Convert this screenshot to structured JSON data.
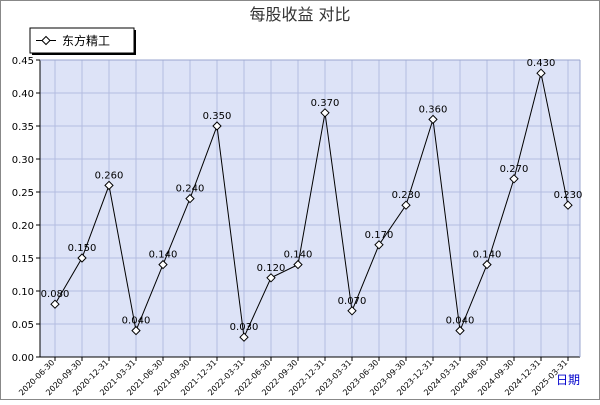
{
  "chart_data": {
    "type": "line",
    "title": "每股收益 对比",
    "xlabel": "日期",
    "ylabel": "",
    "ylim": [
      0,
      0.45
    ],
    "yticks": [
      "0.00",
      "0.05",
      "0.10",
      "0.15",
      "0.20",
      "0.25",
      "0.30",
      "0.35",
      "0.40",
      "0.45"
    ],
    "grid": true,
    "legend_position": "top-left",
    "categories": [
      "2020-06-30",
      "2020-09-30",
      "2020-12-31",
      "2021-03-31",
      "2021-06-30",
      "2021-09-30",
      "2021-12-31",
      "2022-03-31",
      "2022-06-30",
      "2022-09-30",
      "2022-12-31",
      "2023-03-31",
      "2023-06-30",
      "2023-09-30",
      "2023-12-31",
      "2024-03-31",
      "2024-06-30",
      "2024-09-30",
      "2024-12-31",
      "2025-03-31"
    ],
    "series": [
      {
        "name": "东方精工",
        "values": [
          0.08,
          0.15,
          0.26,
          0.04,
          0.14,
          0.24,
          0.35,
          0.03,
          0.12,
          0.14,
          0.37,
          0.07,
          0.17,
          0.23,
          0.36,
          0.04,
          0.14,
          0.27,
          0.43,
          0.23
        ],
        "labels": [
          "0.080",
          "0.150",
          "0.260",
          "0.040",
          "0.140",
          "0.240",
          "0.350",
          "0.030",
          "0.120",
          "0.140",
          "0.370",
          "0.070",
          "0.170",
          "0.230",
          "0.360",
          "0.040",
          "0.140",
          "0.270",
          "0.430",
          "0.230"
        ]
      }
    ],
    "colors": {
      "plot_background": "#dde3f7",
      "grid": "#b3bde0",
      "line": "#000000",
      "title": "#333333",
      "xlabel": "#0000cc",
      "frame": "#777777"
    }
  }
}
